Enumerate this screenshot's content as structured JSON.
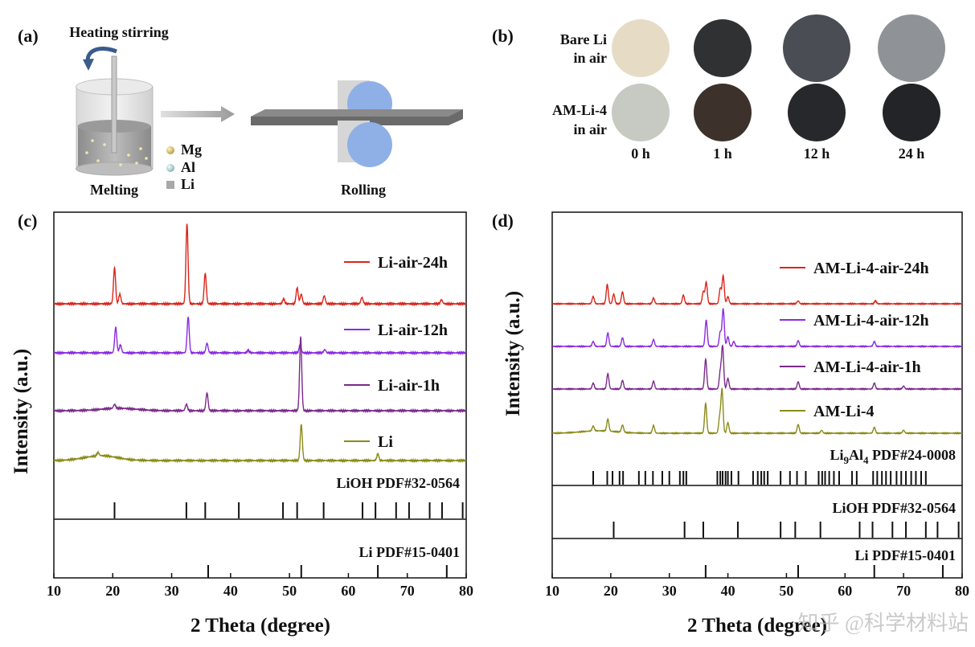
{
  "panel_a": {
    "label": "(a)",
    "heating_label": "Heating stirring",
    "melting_label": "Melting",
    "rolling_label": "Rolling",
    "legend": [
      "Mg",
      "Al",
      "Li"
    ],
    "colors": {
      "mg": "#c8b25a",
      "al": "#9fd0cf",
      "li": "#a8a8a8",
      "roller": "#8fb0e6",
      "sheet": "#5a5a5a"
    }
  },
  "panel_b": {
    "label": "(b)",
    "rows": [
      {
        "name_line1": "Bare Li",
        "name_line2": "in air",
        "colors": [
          "#e6dcc6",
          "#2f3133",
          "#4a4d53",
          "#8f9297"
        ]
      },
      {
        "name_line1": "AM-Li-4",
        "name_line2": "in air",
        "colors": [
          "#c6cac3",
          "#3c322b",
          "#27282c",
          "#232427"
        ]
      }
    ],
    "times": [
      "0 h",
      "1 h",
      "12 h",
      "24 h"
    ]
  },
  "chart_data": [
    {
      "panel": "(c)",
      "type": "line",
      "xlabel": "2 Theta (degree)",
      "ylabel": "Intensity (a.u.)",
      "xlim": [
        10,
        80
      ],
      "xticks": [
        10,
        20,
        30,
        40,
        50,
        60,
        70,
        80
      ],
      "series": [
        {
          "name": "Li-air-24h",
          "color": "#d9261c",
          "peaks": [
            [
              20.3,
              0.45
            ],
            [
              21.2,
              0.12
            ],
            [
              32.6,
              1.0
            ],
            [
              35.7,
              0.38
            ],
            [
              49.0,
              0.06
            ],
            [
              51.3,
              0.2
            ],
            [
              52.0,
              0.12
            ],
            [
              55.9,
              0.1
            ],
            [
              62.3,
              0.08
            ],
            [
              75.8,
              0.05
            ]
          ]
        },
        {
          "name": "Li-air-12h",
          "color": "#8a2be2",
          "peaks": [
            [
              20.5,
              0.32
            ],
            [
              21.3,
              0.1
            ],
            [
              32.8,
              0.45
            ],
            [
              36.0,
              0.12
            ],
            [
              43.0,
              0.03
            ],
            [
              51.8,
              0.1
            ],
            [
              56.0,
              0.04
            ]
          ]
        },
        {
          "name": "Li-air-1h",
          "color": "#7b2a8c",
          "peaks": [
            [
              20.3,
              0.05
            ],
            [
              32.5,
              0.08
            ],
            [
              36.0,
              0.22
            ],
            [
              51.9,
              0.92
            ]
          ]
        },
        {
          "name": "Li",
          "color": "#8b8b1a",
          "peaks": [
            [
              17.5,
              0.04
            ],
            [
              52.0,
              0.45
            ],
            [
              65.0,
              0.08
            ]
          ]
        }
      ],
      "references": [
        {
          "name": "LiOH PDF#32-0564",
          "lines": [
            20.3,
            32.5,
            35.7,
            41.4,
            48.9,
            51.3,
            55.8,
            62.4,
            64.6,
            68.1,
            70.3,
            73.8,
            75.9,
            79.4
          ]
        },
        {
          "name": "Li PDF#15-0401",
          "lines": [
            36.2,
            52.0,
            65.0,
            76.7
          ]
        }
      ]
    },
    {
      "panel": "(d)",
      "type": "line",
      "xlabel": "2 Theta (degree)",
      "ylabel": "Intensity (a.u.)",
      "xlim": [
        10,
        80
      ],
      "xticks": [
        10,
        20,
        30,
        40,
        50,
        60,
        70,
        80
      ],
      "series": [
        {
          "name": "AM-Li-4-air-24h",
          "color": "#d9261c",
          "peaks": [
            [
              17.0,
              0.15
            ],
            [
              19.4,
              0.4
            ],
            [
              20.5,
              0.2
            ],
            [
              22.0,
              0.25
            ],
            [
              27.3,
              0.12
            ],
            [
              32.4,
              0.18
            ],
            [
              35.8,
              0.25
            ],
            [
              36.3,
              0.45
            ],
            [
              38.7,
              0.32
            ],
            [
              39.2,
              0.58
            ],
            [
              40.0,
              0.15
            ],
            [
              52.0,
              0.06
            ],
            [
              65.2,
              0.06
            ]
          ]
        },
        {
          "name": "AM-Li-4-air-12h",
          "color": "#8a2be2",
          "peaks": [
            [
              17.0,
              0.1
            ],
            [
              19.5,
              0.28
            ],
            [
              22.0,
              0.18
            ],
            [
              27.3,
              0.14
            ],
            [
              36.3,
              0.55
            ],
            [
              38.7,
              0.3
            ],
            [
              39.2,
              0.78
            ],
            [
              40.0,
              0.2
            ],
            [
              41.0,
              0.1
            ],
            [
              52.0,
              0.12
            ],
            [
              65.0,
              0.1
            ]
          ]
        },
        {
          "name": "AM-Li-4-air-1h",
          "color": "#7b2a8c",
          "peaks": [
            [
              17.0,
              0.12
            ],
            [
              19.5,
              0.32
            ],
            [
              22.0,
              0.18
            ],
            [
              27.3,
              0.16
            ],
            [
              36.2,
              0.62
            ],
            [
              38.7,
              0.35
            ],
            [
              39.1,
              0.88
            ],
            [
              40.0,
              0.22
            ],
            [
              52.0,
              0.15
            ],
            [
              65.0,
              0.12
            ],
            [
              70.0,
              0.06
            ]
          ]
        },
        {
          "name": "AM-Li-4",
          "color": "#8b8b1a",
          "peaks": [
            [
              17.0,
              0.1
            ],
            [
              19.5,
              0.25
            ],
            [
              22.0,
              0.15
            ],
            [
              27.3,
              0.16
            ],
            [
              36.2,
              0.62
            ],
            [
              38.6,
              0.32
            ],
            [
              39.0,
              0.9
            ],
            [
              40.0,
              0.22
            ],
            [
              52.0,
              0.18
            ],
            [
              56.0,
              0.06
            ],
            [
              65.0,
              0.12
            ],
            [
              70.0,
              0.06
            ]
          ]
        }
      ],
      "references": [
        {
          "name": "Li9Al4 PDF#24-0008",
          "lines": [
            17.0,
            19.4,
            20.3,
            21.5,
            22.1,
            24.8,
            25.9,
            27.2,
            28.8,
            30.0,
            31.8,
            32.4,
            32.9,
            38.2,
            38.7,
            39.1,
            39.6,
            40.0,
            40.6,
            41.8,
            44.3,
            45.1,
            45.7,
            46.2,
            46.8,
            49.0,
            50.6,
            51.8,
            53.3,
            55.5,
            56.1,
            56.6,
            57.3,
            58.1,
            59.0,
            61.2,
            62.0,
            64.8,
            65.5,
            66.3,
            67.0,
            67.8,
            68.8,
            69.6,
            70.4,
            71.3,
            72.1,
            73.0,
            73.8
          ]
        },
        {
          "name": "LiOH PDF#32-0564",
          "lines": [
            20.5,
            32.6,
            35.8,
            41.7,
            49.0,
            51.5,
            55.8,
            62.5,
            64.7,
            68.1,
            70.4,
            73.8,
            75.8,
            79.4
          ]
        },
        {
          "name": "Li PDF#15-0401",
          "lines": [
            36.2,
            52.0,
            65.0,
            76.7
          ]
        }
      ]
    }
  ],
  "watermark": "知乎 @科学材料站"
}
